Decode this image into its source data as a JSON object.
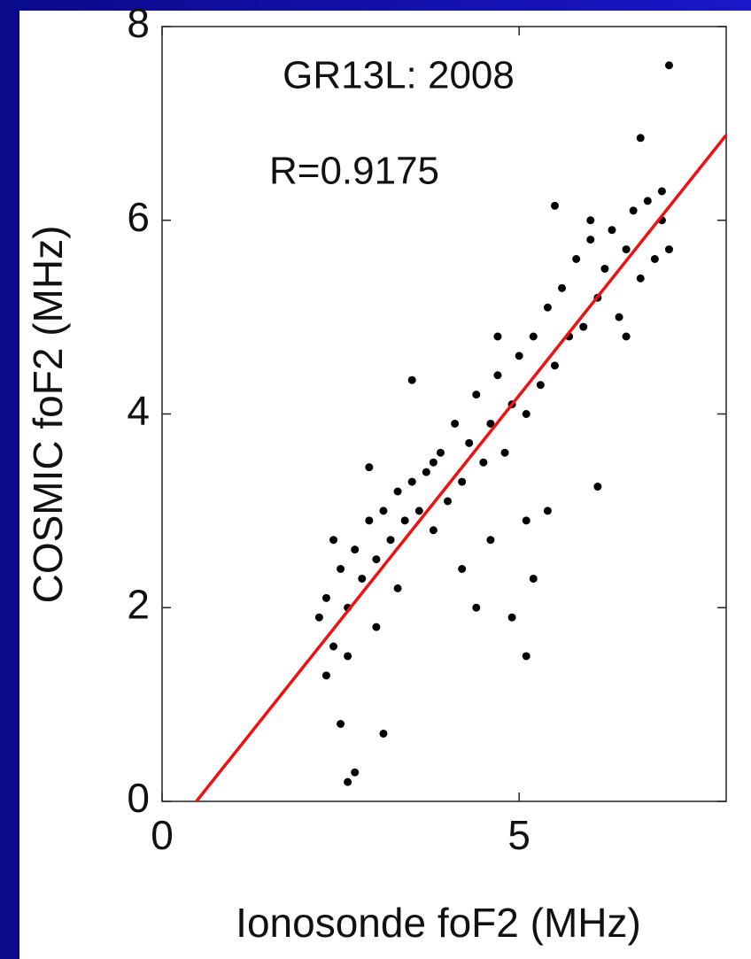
{
  "chart_data": {
    "type": "scatter",
    "annotations": [
      "GR13L: 2008",
      "R=0.9175"
    ],
    "x_label": "Ionosonde foF2 (MHz)",
    "y_label": "COSMIC foF2 (MHz)",
    "xlim": [
      0,
      7.9
    ],
    "ylim": [
      0,
      8
    ],
    "xticks": [
      0,
      5
    ],
    "yticks": [
      0,
      2,
      4,
      6,
      8
    ],
    "series": [
      {
        "type": "scatter",
        "color": "#000000",
        "x": [
          2.2,
          2.3,
          2.4,
          2.5,
          2.6,
          2.7,
          2.8,
          2.9,
          3.0,
          3.1,
          3.2,
          3.3,
          3.4,
          3.5,
          3.6,
          3.7,
          3.8,
          3.9,
          4.0,
          4.1,
          4.2,
          4.3,
          4.4,
          4.5,
          4.6,
          4.7,
          4.8,
          4.9,
          5.0,
          5.1,
          5.2,
          5.3,
          5.4,
          5.5,
          5.6,
          5.7,
          5.8,
          5.9,
          6.0,
          6.1,
          6.2,
          6.3,
          6.4,
          6.5,
          6.6,
          6.7,
          6.8,
          6.9,
          7.0,
          7.1,
          2.3,
          2.6,
          3.0,
          3.3,
          4.2,
          4.4,
          4.6,
          5.1,
          5.2,
          5.4,
          2.4,
          2.9,
          3.8,
          4.7,
          5.5,
          6.0,
          6.5,
          7.0,
          7.1,
          6.7,
          3.5,
          4.9,
          5.1,
          2.6,
          2.7,
          2.5,
          3.1,
          6.1
        ],
        "values": [
          1.9,
          2.1,
          1.6,
          2.4,
          2.0,
          2.6,
          2.3,
          2.9,
          2.5,
          3.0,
          2.7,
          3.2,
          2.9,
          3.3,
          3.0,
          3.4,
          2.8,
          3.6,
          3.1,
          3.9,
          3.3,
          3.7,
          4.2,
          3.5,
          3.9,
          4.4,
          3.6,
          4.1,
          4.6,
          4.0,
          4.8,
          4.3,
          5.1,
          4.5,
          5.3,
          4.8,
          5.6,
          4.9,
          5.8,
          5.2,
          5.5,
          5.9,
          5.0,
          5.7,
          6.1,
          5.4,
          6.2,
          5.6,
          6.0,
          5.7,
          1.3,
          1.5,
          1.8,
          2.2,
          2.4,
          2.0,
          2.7,
          2.9,
          2.3,
          3.0,
          2.7,
          3.45,
          3.5,
          4.8,
          6.15,
          6.0,
          4.8,
          6.3,
          7.6,
          6.85,
          4.35,
          1.9,
          1.5,
          0.2,
          0.3,
          0.8,
          0.7,
          3.25
        ]
      },
      {
        "type": "line",
        "color": "#ee1111",
        "x": [
          0.48,
          7.9
        ],
        "values": [
          0,
          6.88
        ]
      }
    ]
  }
}
